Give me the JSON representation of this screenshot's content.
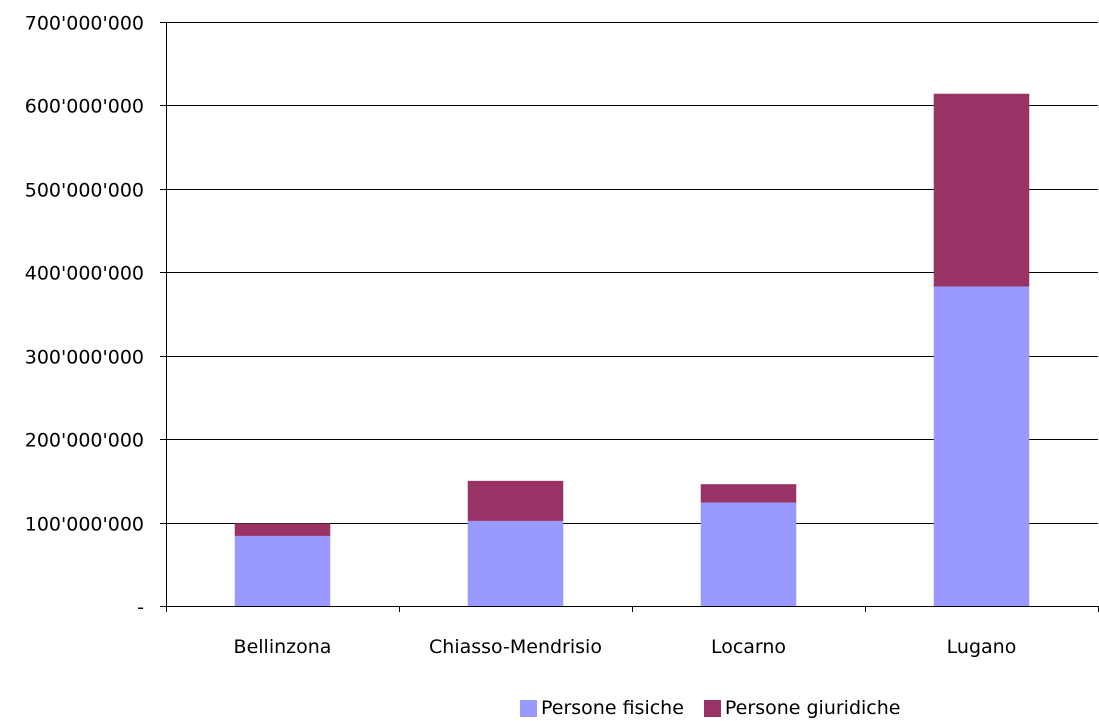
{
  "chart_data": {
    "type": "bar",
    "stacked": true,
    "categories": [
      "Bellinzona",
      "Chiasso-Mendrisio",
      "Locarno",
      "Lugano"
    ],
    "series": [
      {
        "name": "Persone fisiche",
        "color": "#9999ff",
        "values": [
          84000000,
          102000000,
          124000000,
          383000000
        ]
      },
      {
        "name": "Persone giuridiche",
        "color": "#993366",
        "values": [
          15000000,
          48000000,
          22000000,
          231000000
        ]
      }
    ],
    "ylim": [
      0,
      700000000
    ],
    "yticks": [
      0,
      100000000,
      200000000,
      300000000,
      400000000,
      500000000,
      600000000,
      700000000
    ],
    "ytick_labels": [
      "-",
      "100'000'000",
      "200'000'000",
      "300'000'000",
      "400'000'000",
      "500'000'000",
      "600'000'000",
      "700'000'000"
    ],
    "grid": true,
    "legend_position": "bottom",
    "title": "",
    "xlabel": "",
    "ylabel": ""
  }
}
